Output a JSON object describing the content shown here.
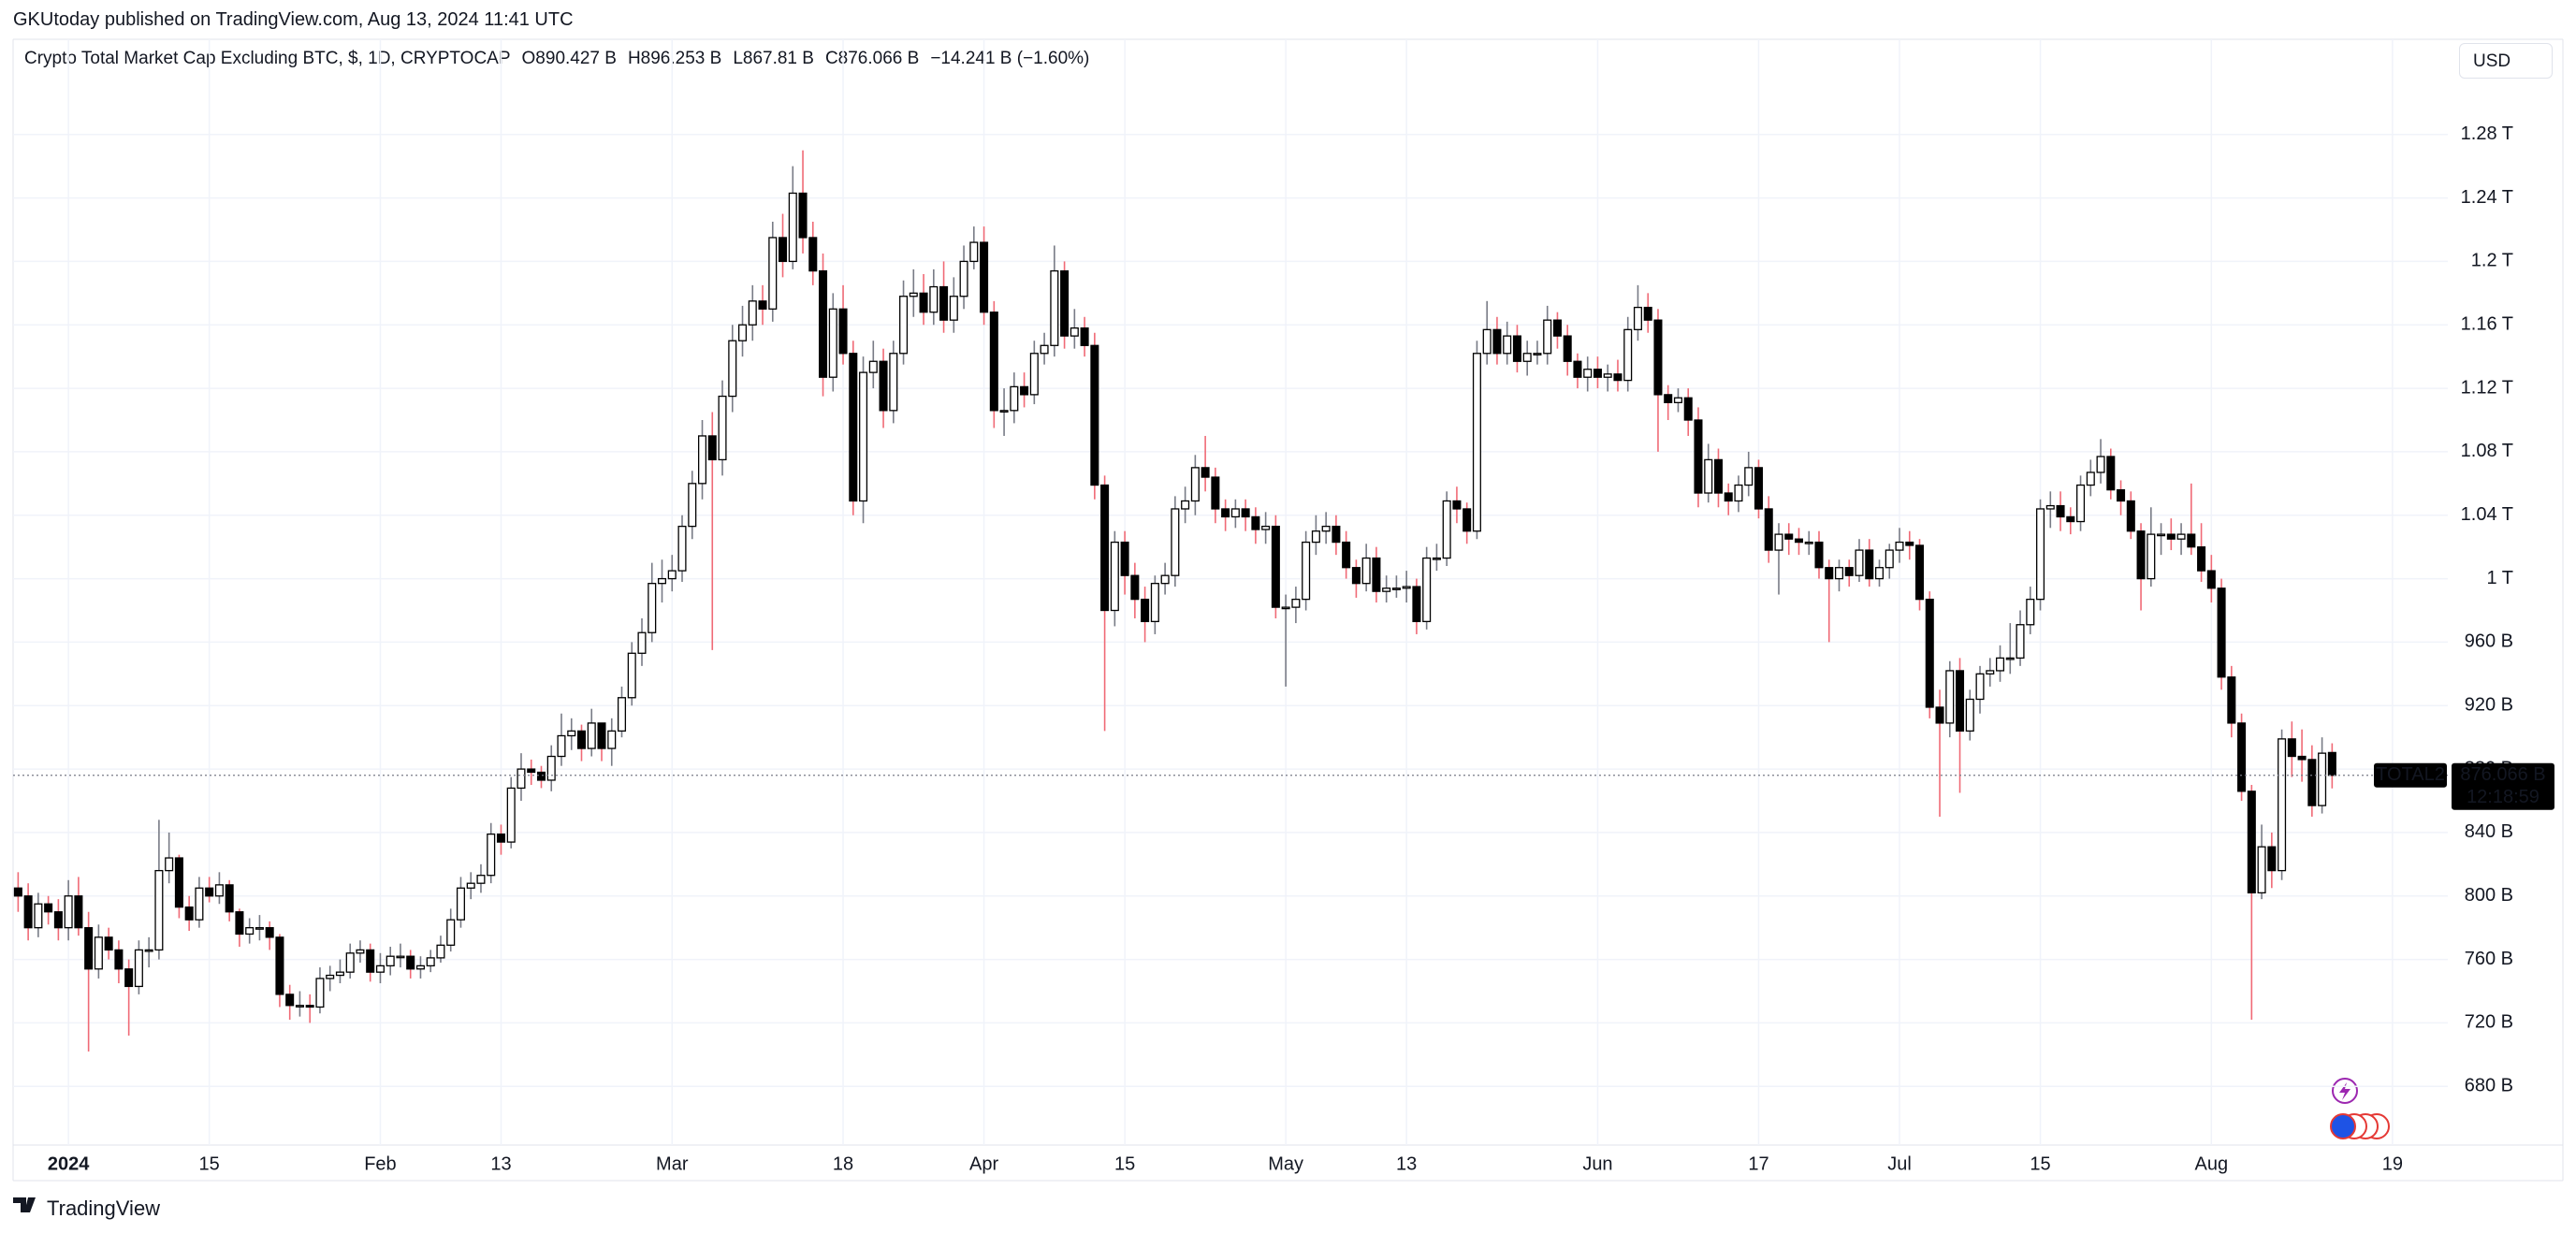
{
  "header": {
    "published": "GKUtoday published on TradingView.com, Aug 13, 2024 11:41 UTC",
    "symbol": "Crypto Total Market Cap Excluding BTC, $, 1D, CRYPTOCAP",
    "open": "O890.427 B",
    "high": "H896.253 B",
    "low": "L867.81 B",
    "close": "C876.066 B",
    "change": "−14.241 B (−1.60%)",
    "currency": "USD",
    "brand": "TradingView"
  },
  "last_price_label": {
    "symbol": "TOTAL2",
    "price": "876.066 B",
    "countdown": "12:18:59"
  },
  "chart_data": {
    "type": "candlestick",
    "grid": true,
    "up_color": "#ffffff",
    "down_color": "#000000",
    "up_wick": "#787b86",
    "down_wick": "#f06a76",
    "xlim": [
      "2023-12-27",
      "2024-08-24"
    ],
    "ylim": [
      643,
      1340
    ],
    "yticks": [
      {
        "value": 1280,
        "label": "1.28 T"
      },
      {
        "value": 1240,
        "label": "1.24 T"
      },
      {
        "value": 1200,
        "label": "1.2 T"
      },
      {
        "value": 1160,
        "label": "1.16 T"
      },
      {
        "value": 1120,
        "label": "1.12 T"
      },
      {
        "value": 1080,
        "label": "1.08 T"
      },
      {
        "value": 1040,
        "label": "1.04 T"
      },
      {
        "value": 1000,
        "label": "1 T"
      },
      {
        "value": 960,
        "label": "960 B"
      },
      {
        "value": 920,
        "label": "920 B"
      },
      {
        "value": 880,
        "label": "880 B"
      },
      {
        "value": 840,
        "label": "840 B"
      },
      {
        "value": 800,
        "label": "800 B"
      },
      {
        "value": 760,
        "label": "760 B"
      },
      {
        "value": 720,
        "label": "720 B"
      },
      {
        "value": 680,
        "label": "680 B"
      }
    ],
    "xticks": [
      {
        "value": "2024-01-01",
        "label": "2024"
      },
      {
        "value": "2024-01-15",
        "label": "15"
      },
      {
        "value": "2024-02-01",
        "label": "Feb"
      },
      {
        "value": "2024-02-13",
        "label": "13"
      },
      {
        "value": "2024-03-01",
        "label": "Mar"
      },
      {
        "value": "2024-03-18",
        "label": "18"
      },
      {
        "value": "2024-04-01",
        "label": "Apr"
      },
      {
        "value": "2024-04-15",
        "label": "15"
      },
      {
        "value": "2024-05-01",
        "label": "May"
      },
      {
        "value": "2024-05-13",
        "label": "13"
      },
      {
        "value": "2024-06-01",
        "label": "Jun"
      },
      {
        "value": "2024-06-17",
        "label": "17"
      },
      {
        "value": "2024-07-01",
        "label": "Jul"
      },
      {
        "value": "2024-07-15",
        "label": "15"
      },
      {
        "value": "2024-08-01",
        "label": "Aug"
      },
      {
        "value": "2024-08-19",
        "label": "19"
      }
    ],
    "x": [
      "2023-12-27",
      "2023-12-28",
      "2023-12-29",
      "2023-12-30",
      "2023-12-31",
      "2024-01-01",
      "2024-01-02",
      "2024-01-03",
      "2024-01-04",
      "2024-01-05",
      "2024-01-06",
      "2024-01-07",
      "2024-01-08",
      "2024-01-09",
      "2024-01-10",
      "2024-01-11",
      "2024-01-12",
      "2024-01-13",
      "2024-01-14",
      "2024-01-15",
      "2024-01-16",
      "2024-01-17",
      "2024-01-18",
      "2024-01-19",
      "2024-01-20",
      "2024-01-21",
      "2024-01-22",
      "2024-01-23",
      "2024-01-24",
      "2024-01-25",
      "2024-01-26",
      "2024-01-27",
      "2024-01-28",
      "2024-01-29",
      "2024-01-30",
      "2024-01-31",
      "2024-02-01",
      "2024-02-02",
      "2024-02-03",
      "2024-02-04",
      "2024-02-05",
      "2024-02-06",
      "2024-02-07",
      "2024-02-08",
      "2024-02-09",
      "2024-02-10",
      "2024-02-11",
      "2024-02-12",
      "2024-02-13",
      "2024-02-14",
      "2024-02-15",
      "2024-02-16",
      "2024-02-17",
      "2024-02-18",
      "2024-02-19",
      "2024-02-20",
      "2024-02-21",
      "2024-02-22",
      "2024-02-23",
      "2024-02-24",
      "2024-02-25",
      "2024-02-26",
      "2024-02-27",
      "2024-02-28",
      "2024-02-29",
      "2024-03-01",
      "2024-03-02",
      "2024-03-03",
      "2024-03-04",
      "2024-03-05",
      "2024-03-06",
      "2024-03-07",
      "2024-03-08",
      "2024-03-09",
      "2024-03-10",
      "2024-03-11",
      "2024-03-12",
      "2024-03-13",
      "2024-03-14",
      "2024-03-15",
      "2024-03-16",
      "2024-03-17",
      "2024-03-18",
      "2024-03-19",
      "2024-03-20",
      "2024-03-21",
      "2024-03-22",
      "2024-03-23",
      "2024-03-24",
      "2024-03-25",
      "2024-03-26",
      "2024-03-27",
      "2024-03-28",
      "2024-03-29",
      "2024-03-30",
      "2024-03-31",
      "2024-04-01",
      "2024-04-02",
      "2024-04-03",
      "2024-04-04",
      "2024-04-05",
      "2024-04-06",
      "2024-04-07",
      "2024-04-08",
      "2024-04-09",
      "2024-04-10",
      "2024-04-11",
      "2024-04-12",
      "2024-04-13",
      "2024-04-14",
      "2024-04-15",
      "2024-04-16",
      "2024-04-17",
      "2024-04-18",
      "2024-04-19",
      "2024-04-20",
      "2024-04-21",
      "2024-04-22",
      "2024-04-23",
      "2024-04-24",
      "2024-04-25",
      "2024-04-26",
      "2024-04-27",
      "2024-04-28",
      "2024-04-29",
      "2024-04-30",
      "2024-05-01",
      "2024-05-02",
      "2024-05-03",
      "2024-05-04",
      "2024-05-05",
      "2024-05-06",
      "2024-05-07",
      "2024-05-08",
      "2024-05-09",
      "2024-05-10",
      "2024-05-11",
      "2024-05-12",
      "2024-05-13",
      "2024-05-14",
      "2024-05-15",
      "2024-05-16",
      "2024-05-17",
      "2024-05-18",
      "2024-05-19",
      "2024-05-20",
      "2024-05-21",
      "2024-05-22",
      "2024-05-23",
      "2024-05-24",
      "2024-05-25",
      "2024-05-26",
      "2024-05-27",
      "2024-05-28",
      "2024-05-29",
      "2024-05-30",
      "2024-05-31",
      "2024-06-01",
      "2024-06-02",
      "2024-06-03",
      "2024-06-04",
      "2024-06-05",
      "2024-06-06",
      "2024-06-07",
      "2024-06-08",
      "2024-06-09",
      "2024-06-10",
      "2024-06-11",
      "2024-06-12",
      "2024-06-13",
      "2024-06-14",
      "2024-06-15",
      "2024-06-16",
      "2024-06-17",
      "2024-06-18",
      "2024-06-19",
      "2024-06-20",
      "2024-06-21",
      "2024-06-22",
      "2024-06-23",
      "2024-06-24",
      "2024-06-25",
      "2024-06-26",
      "2024-06-27",
      "2024-06-28",
      "2024-06-29",
      "2024-06-30",
      "2024-07-01",
      "2024-07-02",
      "2024-07-03",
      "2024-07-04",
      "2024-07-05",
      "2024-07-06",
      "2024-07-07",
      "2024-07-08",
      "2024-07-09",
      "2024-07-10",
      "2024-07-11",
      "2024-07-12",
      "2024-07-13",
      "2024-07-14",
      "2024-07-15",
      "2024-07-16",
      "2024-07-17",
      "2024-07-18",
      "2024-07-19",
      "2024-07-20",
      "2024-07-21",
      "2024-07-22",
      "2024-07-23",
      "2024-07-24",
      "2024-07-25",
      "2024-07-26",
      "2024-07-27",
      "2024-07-28",
      "2024-07-29",
      "2024-07-30",
      "2024-07-31",
      "2024-08-01",
      "2024-08-02",
      "2024-08-03",
      "2024-08-04",
      "2024-08-05",
      "2024-08-06",
      "2024-08-07",
      "2024-08-08",
      "2024-08-09",
      "2024-08-10",
      "2024-08-11",
      "2024-08-12",
      "2024-08-13"
    ],
    "open": [
      805,
      800,
      780,
      795,
      790,
      780,
      800,
      780,
      754,
      774,
      766,
      754,
      743,
      766,
      766,
      816,
      824,
      793,
      785,
      805,
      800,
      807,
      790,
      776,
      780,
      780,
      774,
      738,
      731,
      731,
      730,
      748,
      750,
      752,
      764,
      766,
      752,
      756,
      762,
      762,
      754,
      756,
      761,
      769,
      785,
      805,
      808,
      813,
      839,
      834,
      868,
      880,
      878,
      873,
      888,
      901,
      904,
      893,
      909,
      893,
      904,
      925,
      953,
      966,
      997,
      1000,
      1005,
      1033,
      1060,
      1090,
      1075,
      1115,
      1150,
      1160,
      1175,
      1170,
      1215,
      1200,
      1243,
      1215,
      1194,
      1127,
      1170,
      1142,
      1049,
      1130,
      1137,
      1106,
      1142,
      1178,
      1180,
      1168,
      1184,
      1163,
      1178,
      1200,
      1212,
      1168,
      1106,
      1106,
      1121,
      1116,
      1142,
      1147,
      1194,
      1153,
      1158,
      1147,
      1059,
      980,
      1023,
      1002,
      987,
      973,
      997,
      1002,
      1044,
      1049,
      1070,
      1064,
      1044,
      1039,
      1044,
      1039,
      1031,
      1033,
      982,
      982,
      987,
      1023,
      1030,
      1033,
      1023,
      1007,
      997,
      1013,
      992,
      994,
      994,
      995,
      973,
      1013,
      1013,
      1049,
      1044,
      1030,
      1142,
      1157,
      1142,
      1153,
      1137,
      1142,
      1142,
      1163,
      1153,
      1137,
      1127,
      1132,
      1127,
      1129,
      1125,
      1157,
      1171,
      1163,
      1116,
      1111,
      1114,
      1100,
      1054,
      1075,
      1054,
      1049,
      1059,
      1070,
      1044,
      1018,
      1028,
      1025,
      1023,
      1023,
      1007,
      1000,
      1007,
      1002,
      1018,
      1000,
      1007,
      1018,
      1023,
      1021,
      987,
      919,
      909,
      942,
      904,
      924,
      940,
      942,
      950,
      950,
      971,
      987,
      1044,
      1046,
      1039,
      1036,
      1059,
      1067,
      1077,
      1056,
      1049,
      1030,
      1000,
      1028,
      1028,
      1025,
      1028,
      1020,
      1005,
      994,
      938,
      909,
      866,
      802,
      831,
      816,
      899,
      888,
      886,
      857,
      890.427
    ],
    "high": [
      815,
      808,
      802,
      800,
      798,
      810,
      812,
      790,
      782,
      780,
      772,
      760,
      772,
      774,
      848,
      840,
      826,
      800,
      812,
      812,
      815,
      810,
      792,
      786,
      788,
      784,
      776,
      744,
      740,
      738,
      755,
      756,
      760,
      770,
      772,
      770,
      764,
      768,
      770,
      766,
      762,
      766,
      775,
      792,
      812,
      815,
      820,
      846,
      845,
      875,
      890,
      886,
      882,
      895,
      915,
      912,
      908,
      918,
      905,
      912,
      932,
      960,
      975,
      1010,
      1012,
      1015,
      1040,
      1068,
      1100,
      1105,
      1125,
      1160,
      1172,
      1185,
      1185,
      1225,
      1230,
      1260,
      1270,
      1225,
      1205,
      1180,
      1185,
      1150,
      1140,
      1150,
      1145,
      1150,
      1188,
      1195,
      1192,
      1195,
      1200,
      1190,
      1210,
      1222,
      1222,
      1175,
      1120,
      1130,
      1130,
      1150,
      1155,
      1210,
      1200,
      1170,
      1165,
      1155,
      1065,
      1030,
      1030,
      1010,
      995,
      1002,
      1010,
      1052,
      1058,
      1078,
      1090,
      1070,
      1050,
      1050,
      1050,
      1045,
      1042,
      1040,
      990,
      995,
      1030,
      1040,
      1042,
      1040,
      1030,
      1012,
      1022,
      1020,
      1002,
      1002,
      1005,
      1000,
      1020,
      1022,
      1055,
      1058,
      1048,
      1150,
      1175,
      1165,
      1162,
      1160,
      1150,
      1150,
      1172,
      1168,
      1160,
      1142,
      1140,
      1140,
      1135,
      1138,
      1165,
      1185,
      1180,
      1170,
      1122,
      1120,
      1120,
      1108,
      1085,
      1082,
      1060,
      1065,
      1080,
      1075,
      1052,
      1035,
      1035,
      1032,
      1030,
      1030,
      1012,
      1012,
      1012,
      1025,
      1025,
      1012,
      1022,
      1032,
      1030,
      1025,
      992,
      930,
      948,
      950,
      930,
      945,
      950,
      958,
      972,
      980,
      995,
      1050,
      1055,
      1055,
      1045,
      1065,
      1075,
      1088,
      1082,
      1062,
      1055,
      1035,
      1045,
      1035,
      1038,
      1035,
      1060,
      1035,
      1015,
      1000,
      945,
      915,
      870,
      845,
      840,
      905,
      910,
      905,
      895,
      900,
      896.253
    ],
    "low": [
      790,
      772,
      774,
      782,
      772,
      772,
      775,
      702,
      748,
      760,
      745,
      712,
      738,
      755,
      760,
      808,
      786,
      778,
      780,
      796,
      795,
      784,
      768,
      770,
      772,
      766,
      730,
      722,
      724,
      720,
      726,
      740,
      745,
      748,
      758,
      746,
      745,
      750,
      755,
      748,
      748,
      752,
      758,
      765,
      780,
      798,
      802,
      808,
      826,
      830,
      860,
      870,
      868,
      866,
      882,
      892,
      885,
      888,
      885,
      882,
      900,
      920,
      945,
      960,
      985,
      992,
      998,
      1025,
      1050,
      955,
      1065,
      1105,
      1140,
      1150,
      1160,
      1162,
      1190,
      1195,
      1205,
      1185,
      1115,
      1118,
      1135,
      1040,
      1035,
      1120,
      1095,
      1098,
      1135,
      1165,
      1160,
      1160,
      1155,
      1155,
      1170,
      1195,
      1160,
      1095,
      1090,
      1098,
      1108,
      1110,
      1135,
      1140,
      1145,
      1145,
      1140,
      1050,
      904,
      970,
      990,
      975,
      960,
      965,
      990,
      995,
      1035,
      1040,
      1055,
      1035,
      1030,
      1032,
      1030,
      1022,
      1022,
      975,
      932,
      972,
      980,
      1015,
      1022,
      1015,
      1000,
      988,
      992,
      985,
      985,
      988,
      985,
      965,
      968,
      1005,
      1008,
      1035,
      1022,
      1025,
      1135,
      1135,
      1135,
      1130,
      1128,
      1135,
      1135,
      1145,
      1128,
      1120,
      1118,
      1120,
      1118,
      1118,
      1118,
      1150,
      1155,
      1080,
      1100,
      1105,
      1090,
      1045,
      1048,
      1045,
      1040,
      1042,
      1052,
      1038,
      1010,
      990,
      1015,
      1015,
      1015,
      1000,
      960,
      992,
      995,
      998,
      995,
      995,
      1000,
      1010,
      1012,
      980,
      912,
      850,
      900,
      865,
      898,
      915,
      932,
      935,
      940,
      945,
      965,
      980,
      1032,
      1030,
      1028,
      1030,
      1052,
      1060,
      1050,
      1040,
      1025,
      980,
      995,
      1015,
      1018,
      1015,
      1015,
      998,
      985,
      930,
      900,
      860,
      722,
      798,
      805,
      810,
      875,
      872,
      850,
      852,
      867.81
    ],
    "close": [
      800,
      780,
      795,
      790,
      780,
      800,
      780,
      754,
      774,
      766,
      754,
      743,
      766,
      766,
      816,
      824,
      793,
      785,
      805,
      800,
      807,
      790,
      776,
      780,
      780,
      774,
      738,
      731,
      731,
      730,
      748,
      750,
      752,
      764,
      766,
      752,
      756,
      762,
      762,
      754,
      756,
      761,
      769,
      785,
      805,
      808,
      813,
      839,
      834,
      868,
      880,
      878,
      873,
      888,
      901,
      904,
      893,
      909,
      893,
      904,
      925,
      953,
      966,
      997,
      1000,
      1005,
      1033,
      1060,
      1090,
      1075,
      1115,
      1150,
      1160,
      1175,
      1170,
      1215,
      1200,
      1243,
      1215,
      1194,
      1127,
      1170,
      1142,
      1049,
      1130,
      1137,
      1106,
      1142,
      1178,
      1180,
      1168,
      1184,
      1163,
      1178,
      1200,
      1212,
      1168,
      1106,
      1106,
      1121,
      1116,
      1142,
      1147,
      1194,
      1153,
      1158,
      1147,
      1059,
      980,
      1023,
      1002,
      987,
      973,
      997,
      1002,
      1044,
      1049,
      1070,
      1064,
      1044,
      1039,
      1044,
      1039,
      1031,
      1033,
      982,
      982,
      987,
      1023,
      1030,
      1033,
      1023,
      1007,
      997,
      1013,
      992,
      994,
      994,
      995,
      973,
      1013,
      1013,
      1049,
      1044,
      1030,
      1142,
      1157,
      1142,
      1153,
      1137,
      1142,
      1142,
      1163,
      1153,
      1137,
      1127,
      1132,
      1127,
      1129,
      1125,
      1157,
      1171,
      1163,
      1116,
      1111,
      1114,
      1100,
      1054,
      1075,
      1054,
      1049,
      1059,
      1070,
      1044,
      1018,
      1028,
      1025,
      1023,
      1023,
      1007,
      1000,
      1007,
      1002,
      1018,
      1000,
      1007,
      1018,
      1023,
      1021,
      987,
      919,
      909,
      942,
      904,
      924,
      940,
      942,
      950,
      950,
      971,
      987,
      1044,
      1046,
      1039,
      1036,
      1059,
      1067,
      1077,
      1056,
      1049,
      1030,
      1000,
      1028,
      1028,
      1025,
      1028,
      1020,
      1005,
      994,
      938,
      909,
      866,
      802,
      831,
      816,
      899,
      888,
      886,
      857,
      890,
      876.066
    ]
  }
}
